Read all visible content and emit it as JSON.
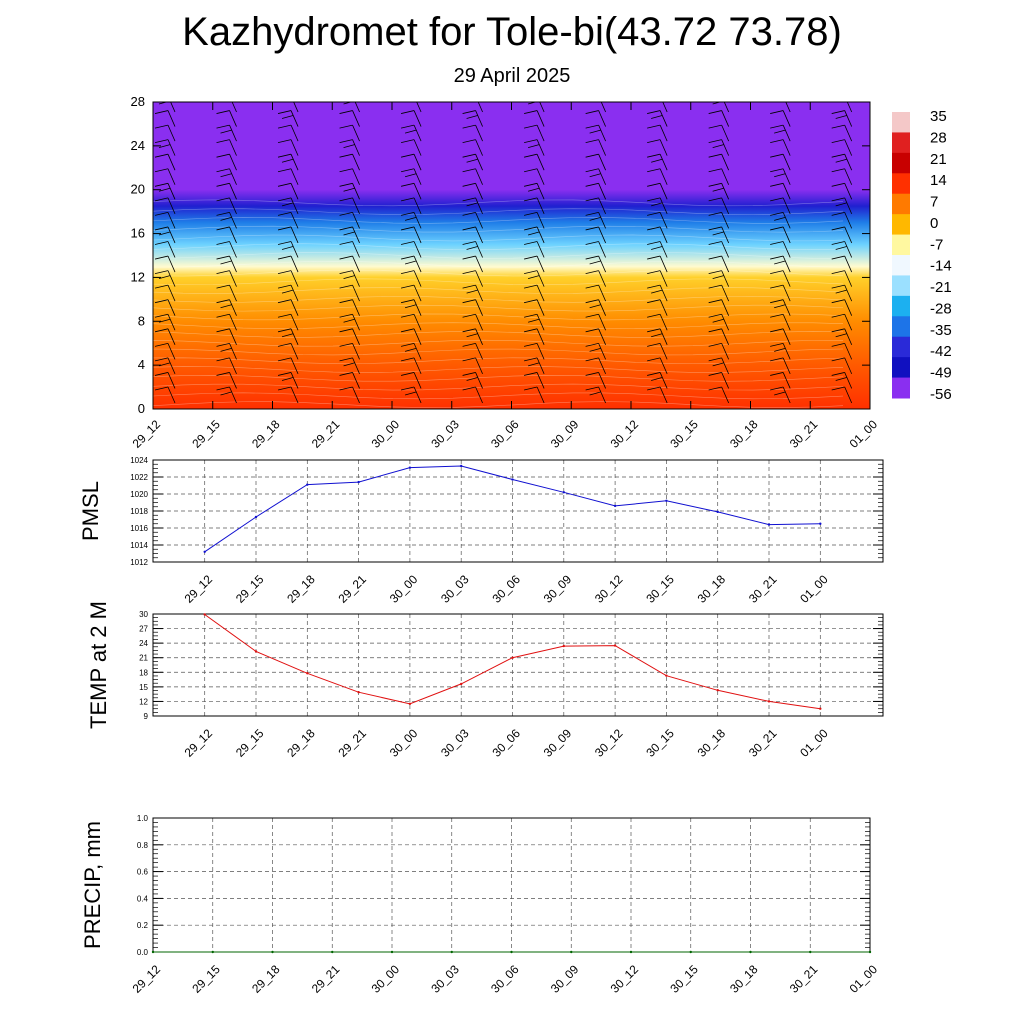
{
  "header": {
    "title": "Kazhydromet for Tole-bi(43.72 73.78)",
    "subtitle": "29 April 2025"
  },
  "chart_data": [
    {
      "type": "heatmap",
      "title": "",
      "xlabel": "",
      "ylabel": "",
      "x_tick_labels": [
        "29_12",
        "29_15",
        "29_18",
        "29_21",
        "30_00",
        "30_03",
        "30_06",
        "30_09",
        "30_12",
        "30_15",
        "30_18",
        "30_21",
        "01_00"
      ],
      "y_tick_labels": [
        "0",
        "4",
        "8",
        "12",
        "16",
        "20",
        "24",
        "28"
      ],
      "ylim": [
        0,
        28
      ],
      "overlay": "wind barbs",
      "colorbar_labels": [
        "35",
        "28",
        "21",
        "14",
        "7",
        "0",
        "-7",
        "-14",
        "-21",
        "-28",
        "-35",
        "-42",
        "-49",
        "-56"
      ],
      "colorbar_colors": [
        "#f4c8c8",
        "#e02020",
        "#c80000",
        "#ff3000",
        "#ff7a00",
        "#ffb800",
        "#fff8a0",
        "#f0f8ff",
        "#9be0ff",
        "#1cb0f0",
        "#1d74e8",
        "#2a2ad8",
        "#1010c0",
        "#8a2ff0"
      ],
      "field_rows": [
        {
          "level": 0,
          "color": "#ff3000"
        },
        {
          "level": 4,
          "color": "#ff5a00"
        },
        {
          "level": 8,
          "color": "#ff8c00"
        },
        {
          "level": 12,
          "color": "#ffd02a"
        },
        {
          "level": 13,
          "color": "#fffbd0"
        },
        {
          "level": 15,
          "color": "#6dd2ff"
        },
        {
          "level": 17,
          "color": "#1f7ee8"
        },
        {
          "level": 18.5,
          "color": "#2020d0"
        },
        {
          "level": 20,
          "color": "#8a2ff0"
        },
        {
          "level": 28,
          "color": "#8a2ff0"
        }
      ]
    },
    {
      "type": "line",
      "ylabel": "PMSL",
      "x": [
        "29_12",
        "29_15",
        "29_18",
        "29_21",
        "30_00",
        "30_03",
        "30_06",
        "30_09",
        "30_12",
        "30_15",
        "30_18",
        "30_21",
        "01_00"
      ],
      "y_ticks": [
        "1012",
        "1014",
        "1016",
        "1018",
        "1020",
        "1022",
        "1024"
      ],
      "ylim": [
        1012,
        1024
      ],
      "series": [
        {
          "values": [
            1013.2,
            1017.3,
            1021.1,
            1021.4,
            1023.1,
            1023.3,
            1021.7,
            1020.2,
            1018.6,
            1019.2,
            1017.9,
            1016.4,
            1016.5
          ],
          "color": "#1010d0"
        }
      ]
    },
    {
      "type": "line",
      "ylabel": "TEMP at 2 M",
      "x": [
        "29_12",
        "29_15",
        "29_18",
        "29_21",
        "30_00",
        "30_03",
        "30_06",
        "30_09",
        "30_12",
        "30_15",
        "30_18",
        "30_21",
        "01_00"
      ],
      "y_ticks": [
        "9",
        "12",
        "15",
        "18",
        "21",
        "24",
        "27",
        "30"
      ],
      "ylim": [
        9,
        30
      ],
      "series": [
        {
          "values": [
            29.9,
            22.3,
            17.8,
            13.9,
            11.5,
            15.6,
            21.0,
            23.4,
            23.5,
            17.3,
            14.3,
            12.0,
            10.5
          ],
          "color": "#e01010"
        }
      ]
    },
    {
      "type": "line",
      "ylabel": "PRECIP, mm",
      "x": [
        "29_12",
        "29_15",
        "29_18",
        "29_21",
        "30_00",
        "30_03",
        "30_06",
        "30_09",
        "30_12",
        "30_15",
        "30_18",
        "30_21",
        "01_00"
      ],
      "y_ticks": [
        "0.0",
        "0.2",
        "0.4",
        "0.6",
        "0.8",
        "1.0"
      ],
      "ylim": [
        0,
        1
      ],
      "series": [
        {
          "values": [
            0,
            0,
            0,
            0,
            0,
            0,
            0,
            0,
            0,
            0,
            0,
            0,
            0
          ],
          "color": "#006400"
        }
      ]
    }
  ]
}
